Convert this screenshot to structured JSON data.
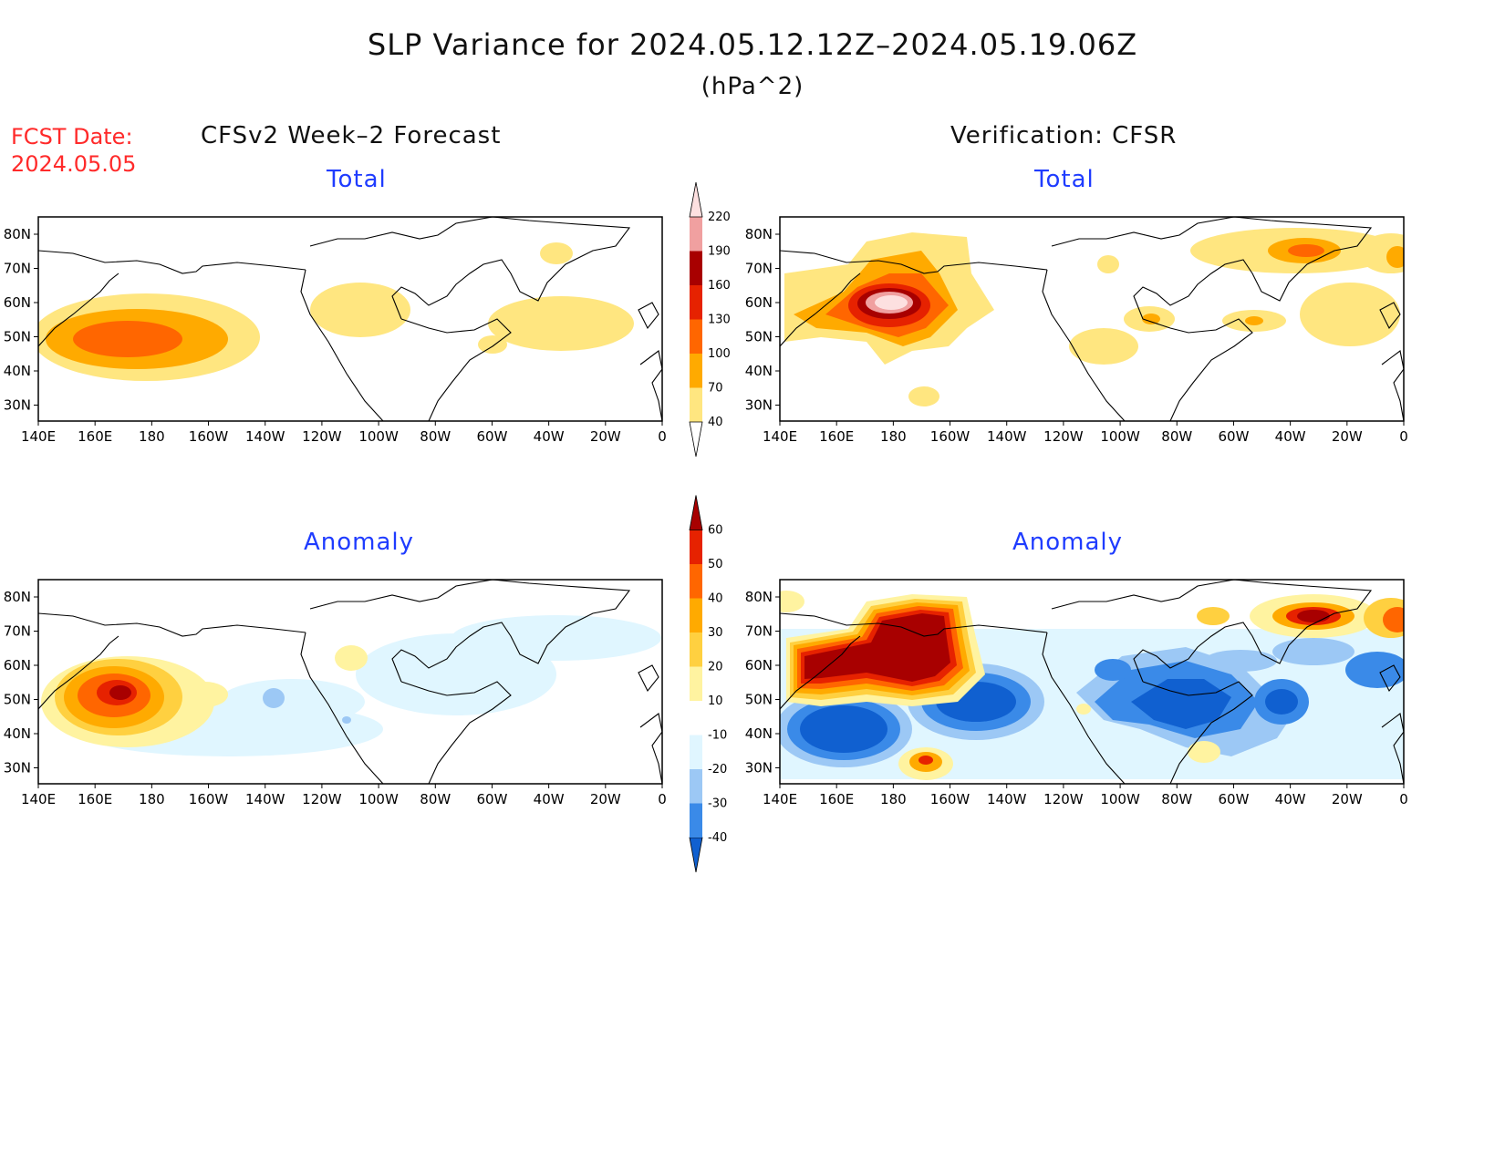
{
  "header": {
    "title": "SLP Variance for 2024.05.12.12Z–2024.05.19.06Z",
    "units": "(hPa^2)",
    "fcst_label": "FCST Date:",
    "fcst_date": "2024.05.05"
  },
  "columns": {
    "left_title": "CFSv2 Week–2 Forecast",
    "right_title": "Verification: CFSR"
  },
  "panels": {
    "forecast_total_title": "Total",
    "forecast_anomaly_title": "Anomaly",
    "verification_total_title": "Total",
    "verification_anomaly_title": "Anomaly"
  },
  "axes": {
    "lon_labels": [
      "140E",
      "160E",
      "180",
      "160W",
      "140W",
      "120W",
      "100W",
      "80W",
      "60W",
      "40W",
      "20W",
      "0"
    ],
    "lat_labels": [
      "80N",
      "70N",
      "60N",
      "50N",
      "40N",
      "30N"
    ]
  },
  "colorbars": {
    "total": {
      "levels": [
        "40",
        "70",
        "100",
        "130",
        "160",
        "190",
        "220"
      ],
      "colors": [
        "#ffe680",
        "#ffaa00",
        "#ff6600",
        "#e62200",
        "#a80000",
        "#f0a0a0",
        "#fde0e0"
      ]
    },
    "anomaly": {
      "levels": [
        "-40",
        "-30",
        "-20",
        "-10",
        "10",
        "20",
        "30",
        "40",
        "50",
        "60"
      ],
      "colors": [
        "#1060d0",
        "#3a8ae8",
        "#9cc8f5",
        "#e0f6ff",
        "#ffffff",
        "#fff3a0",
        "#ffd040",
        "#ffaa00",
        "#ff6600",
        "#e62200",
        "#a80000"
      ]
    }
  }
}
